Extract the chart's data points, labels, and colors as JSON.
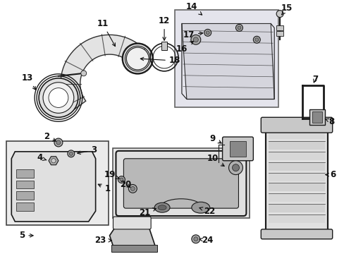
{
  "bg_color": "#ffffff",
  "fig_width": 4.89,
  "fig_height": 3.6,
  "dpi": 100,
  "line_color": "#1a1a1a",
  "label_fontsize": 8.5,
  "part_gray": "#c8c8c8",
  "part_gray2": "#e0e0e0",
  "box_fill": "#e8e8ee",
  "box_edge": "#555555"
}
